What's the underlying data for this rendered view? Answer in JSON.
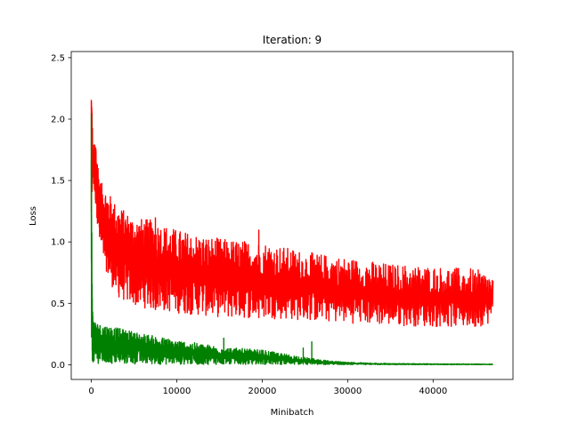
{
  "chart_data": {
    "type": "line",
    "title": "Iteration: 9",
    "xlabel": "Minibatch",
    "ylabel": "Loss",
    "xlim": [
      -2350,
      49350
    ],
    "ylim": [
      -0.12,
      2.55
    ],
    "xticks": [
      0,
      10000,
      20000,
      30000,
      40000
    ],
    "xtick_labels": [
      "0",
      "10000",
      "20000",
      "30000",
      "40000"
    ],
    "yticks": [
      0.0,
      0.5,
      1.0,
      1.5,
      2.0,
      2.5
    ],
    "ytick_labels": [
      "0.0",
      "0.5",
      "1.0",
      "1.5",
      "2.0",
      "2.5"
    ],
    "grid": false,
    "series": [
      {
        "color": "#ff0000",
        "x": [
          0,
          50,
          200,
          500,
          1000,
          2000,
          3000,
          5000,
          7000,
          10000,
          13000,
          16000,
          20000,
          25000,
          30000,
          35000,
          40000,
          45000,
          47000
        ],
        "upper": [
          2.36,
          2.2,
          1.75,
          1.85,
          1.5,
          1.4,
          1.3,
          1.2,
          1.18,
          1.1,
          1.05,
          1.02,
          1.0,
          0.92,
          0.87,
          0.82,
          0.8,
          0.78,
          0.72
        ],
        "lower": [
          1.05,
          1.3,
          1.5,
          1.3,
          0.95,
          0.7,
          0.55,
          0.48,
          0.45,
          0.42,
          0.4,
          0.38,
          0.38,
          0.36,
          0.34,
          0.32,
          0.31,
          0.3,
          0.35
        ]
      },
      {
        "color": "#008000",
        "x": [
          0,
          50,
          100,
          200,
          500,
          1000,
          2000,
          3000,
          5000,
          7000,
          10000,
          13000,
          16000,
          20000,
          25000,
          28000,
          30000,
          35000,
          40000,
          45000,
          47000
        ],
        "upper": [
          2.43,
          1.5,
          0.6,
          0.38,
          0.35,
          0.33,
          0.32,
          0.3,
          0.27,
          0.24,
          0.2,
          0.17,
          0.14,
          0.12,
          0.06,
          0.03,
          0.02,
          0.01,
          0.008,
          0.006,
          0.005
        ],
        "lower": [
          0.0,
          0.02,
          0.02,
          0.02,
          0.01,
          0.01,
          0.005,
          0.005,
          0.004,
          0.003,
          0.003,
          0.002,
          0.002,
          0.002,
          0.001,
          0.001,
          0.0,
          0.0,
          0.0,
          0.0,
          0.0
        ]
      }
    ],
    "spikes": [
      {
        "series": 1,
        "x": 15500,
        "y": 0.22
      },
      {
        "series": 1,
        "x": 24800,
        "y": 0.14
      },
      {
        "series": 1,
        "x": 25800,
        "y": 0.19
      },
      {
        "series": 0,
        "x": 19600,
        "y": 1.1
      },
      {
        "series": 0,
        "x": 7500,
        "y": 1.2
      }
    ]
  }
}
